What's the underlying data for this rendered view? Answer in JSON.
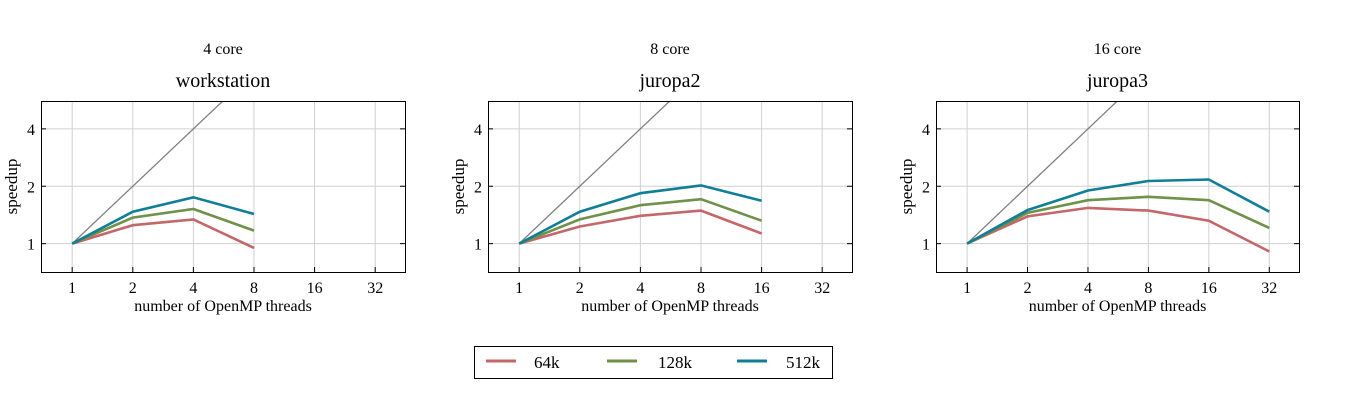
{
  "colors": {
    "64k": "#c4676a",
    "128k": "#6f9149",
    "512k": "#107e96",
    "ideal": "#808080"
  },
  "legend": {
    "position": "bottom-center",
    "entries": [
      "64k",
      "128k",
      "512k"
    ]
  },
  "chart_data": [
    {
      "type": "line",
      "subtitle": "4 core",
      "title": "workstation",
      "xlabel": "number of OpenMP threads",
      "ylabel": "speedup",
      "xscale": "log2",
      "yscale": "log2",
      "xlim": [
        0.7,
        45
      ],
      "ylim": [
        0.71,
        5.6
      ],
      "xticks": [
        "1",
        "2",
        "4",
        "8",
        "16",
        "32"
      ],
      "yticks": [
        "1",
        "2",
        "4"
      ],
      "grid": true,
      "ideal_line": "y = x",
      "x": [
        1,
        2,
        4,
        8
      ],
      "series": [
        {
          "name": "64k",
          "values": [
            1,
            1.25,
            1.34,
            0.95
          ]
        },
        {
          "name": "128k",
          "values": [
            1,
            1.37,
            1.52,
            1.17
          ]
        },
        {
          "name": "512k",
          "values": [
            1,
            1.47,
            1.75,
            1.43
          ]
        }
      ]
    },
    {
      "type": "line",
      "subtitle": "8 core",
      "title": "juropa2",
      "xlabel": "number of OpenMP threads",
      "ylabel": "speedup",
      "xscale": "log2",
      "yscale": "log2",
      "xlim": [
        0.7,
        45
      ],
      "ylim": [
        0.71,
        5.6
      ],
      "xticks": [
        "1",
        "2",
        "4",
        "8",
        "16",
        "32"
      ],
      "yticks": [
        "1",
        "2",
        "4"
      ],
      "grid": true,
      "ideal_line": "y = x",
      "x": [
        1,
        2,
        4,
        8,
        16
      ],
      "series": [
        {
          "name": "64k",
          "values": [
            1,
            1.23,
            1.4,
            1.49,
            1.13
          ]
        },
        {
          "name": "128k",
          "values": [
            1,
            1.34,
            1.59,
            1.71,
            1.32
          ]
        },
        {
          "name": "512k",
          "values": [
            1,
            1.47,
            1.84,
            2.02,
            1.68
          ]
        }
      ]
    },
    {
      "type": "line",
      "subtitle": "16 core",
      "title": "juropa3",
      "xlabel": "number of OpenMP threads",
      "ylabel": "speedup",
      "xscale": "log2",
      "yscale": "log2",
      "xlim": [
        0.7,
        45
      ],
      "ylim": [
        0.71,
        5.6
      ],
      "xticks": [
        "1",
        "2",
        "4",
        "8",
        "16",
        "32"
      ],
      "yticks": [
        "1",
        "2",
        "4"
      ],
      "grid": true,
      "ideal_line": "y = x",
      "x": [
        1,
        2,
        4,
        8,
        16,
        32
      ],
      "series": [
        {
          "name": "64k",
          "values": [
            1,
            1.39,
            1.54,
            1.49,
            1.32,
            0.91
          ]
        },
        {
          "name": "128k",
          "values": [
            1,
            1.45,
            1.69,
            1.76,
            1.69,
            1.21
          ]
        },
        {
          "name": "512k",
          "values": [
            1,
            1.5,
            1.9,
            2.13,
            2.17,
            1.47
          ]
        }
      ]
    }
  ]
}
